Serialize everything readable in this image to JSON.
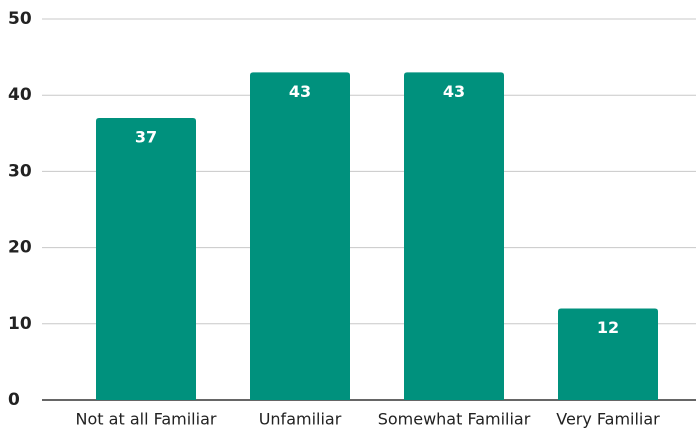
{
  "chart_data": {
    "type": "bar",
    "categories": [
      "Not at all Familiar",
      "Unfamiliar",
      "Somewhat Familiar",
      "Very Familiar"
    ],
    "values": [
      37,
      43,
      43,
      12
    ],
    "color": "#00917d",
    "ylim": [
      0,
      50
    ],
    "yticks": [
      0,
      10,
      20,
      30,
      40,
      50
    ],
    "grid": true
  }
}
